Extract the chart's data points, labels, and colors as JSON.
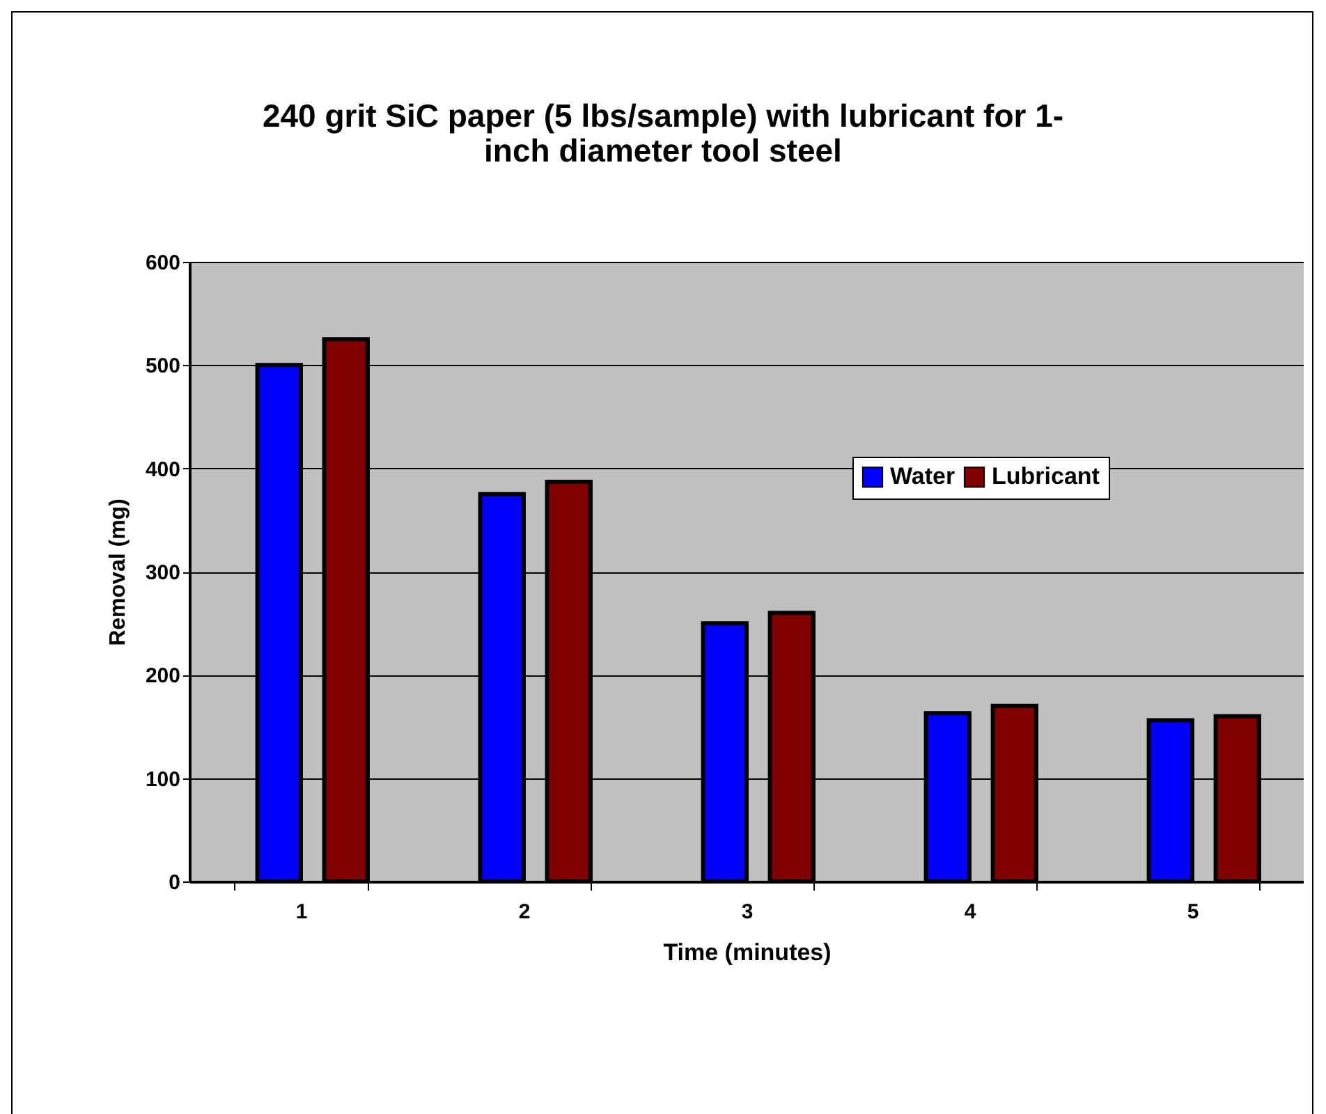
{
  "chart_data": {
    "type": "bar",
    "title": "240 grit SiC paper (5 lbs/sample) with lubricant for 1-inch diameter tool steel",
    "xlabel": "Time (minutes)",
    "ylabel": "Removal (mg)",
    "categories": [
      "1",
      "2",
      "3",
      "4",
      "5"
    ],
    "series": [
      {
        "name": "Water",
        "color": "#0000ff",
        "values": [
          500,
          375,
          250,
          163,
          156
        ]
      },
      {
        "name": "Lubricant",
        "color": "#800000",
        "values": [
          525,
          387,
          260,
          170,
          160
        ]
      }
    ],
    "ylim": [
      0,
      600
    ],
    "yticks": [
      0,
      100,
      200,
      300,
      400,
      500,
      600
    ],
    "grid": "y",
    "legend": "top right"
  }
}
